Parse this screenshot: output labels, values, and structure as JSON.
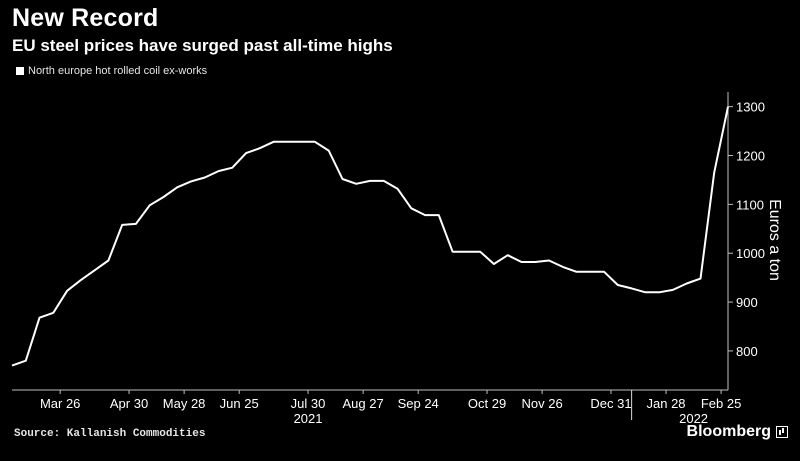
{
  "header": {
    "title": "New Record",
    "subtitle": "EU steel prices have surged past all-time highs"
  },
  "footer": {
    "source": "Source: Kallanish Commodities",
    "brand": "Bloomberg"
  },
  "colors": {
    "background": "#000000",
    "line": "#ffffff",
    "text": "#ffffff",
    "axis": "#bfbfbf",
    "year_divider": "#d9d9d9"
  },
  "icons": {
    "brand": "bloomberg-terminal-icon"
  },
  "chart_data": {
    "type": "line",
    "title": "New Record",
    "subtitle": "EU steel prices have surged past all-time highs",
    "xlabel": "",
    "ylabel": "Euros a ton",
    "ylim": [
      720,
      1330
    ],
    "yticks": [
      800,
      900,
      1000,
      1100,
      1200,
      1300
    ],
    "grid": false,
    "legend_position": "top-left",
    "xlim": [
      -3.5,
      48.5
    ],
    "x_tick_labels": [
      {
        "label": "Mar 26",
        "x": 0
      },
      {
        "label": "Apr 30",
        "x": 5
      },
      {
        "label": "May 28",
        "x": 9
      },
      {
        "label": "Jun 25",
        "x": 13
      },
      {
        "label": "Jul 30",
        "x": 18
      },
      {
        "label": "Aug 27",
        "x": 22
      },
      {
        "label": "Sep 24",
        "x": 26
      },
      {
        "label": "Oct 29",
        "x": 31
      },
      {
        "label": "Nov 26",
        "x": 35
      },
      {
        "label": "Dec 31",
        "x": 40
      },
      {
        "label": "Jan 28",
        "x": 44
      },
      {
        "label": "Feb 25",
        "x": 48
      }
    ],
    "year_labels": [
      {
        "label": "2021",
        "x": 18
      },
      {
        "label": "2022",
        "x": 46
      }
    ],
    "year_divider_x": 41.5,
    "series": [
      {
        "name": "North europe hot rolled coil ex-works",
        "x": [
          -3.5,
          -2.5,
          -1.5,
          -0.5,
          0.5,
          1.5,
          2.5,
          3.5,
          4.5,
          5.5,
          6.5,
          7.5,
          8.5,
          9.5,
          10.5,
          11.5,
          12.5,
          13.5,
          14.5,
          15.5,
          16.5,
          17.5,
          18.5,
          19.5,
          20.5,
          21.5,
          22.5,
          23.5,
          24.5,
          25.5,
          26.5,
          27.5,
          28.5,
          29.5,
          30.5,
          31.5,
          32.5,
          33.5,
          34.5,
          35.5,
          36.5,
          37.5,
          38.5,
          39.5,
          40.5,
          41.5,
          42.5,
          43.5,
          44.5,
          45.5,
          46.5,
          47.5,
          48.5
        ],
        "values": [
          770,
          780,
          868,
          878,
          923,
          945,
          965,
          985,
          1058,
          1060,
          1098,
          1115,
          1135,
          1147,
          1155,
          1168,
          1175,
          1205,
          1215,
          1228,
          1228,
          1228,
          1228,
          1210,
          1152,
          1142,
          1148,
          1148,
          1132,
          1092,
          1078,
          1078,
          1003,
          1003,
          1003,
          978,
          996,
          982,
          982,
          985,
          972,
          962,
          962,
          962,
          935,
          928,
          920,
          920,
          925,
          938,
          948,
          1165,
          1300
        ]
      }
    ]
  }
}
